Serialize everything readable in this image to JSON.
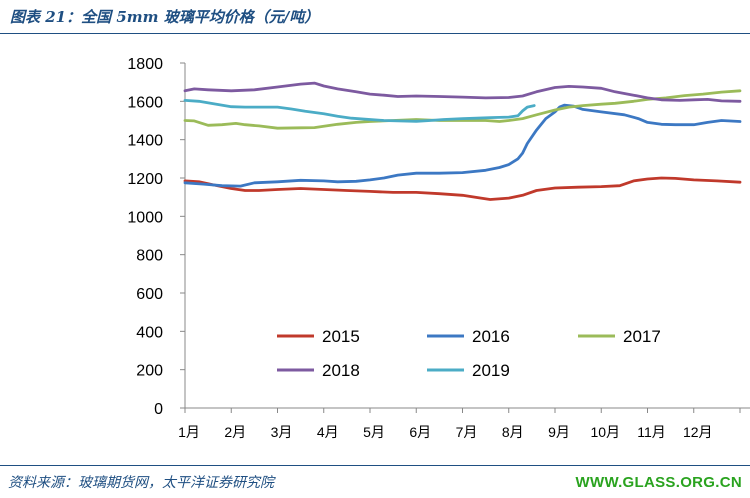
{
  "header": {
    "title": "图表 21：全国 5mm 玻璃平均价格（元/吨）"
  },
  "footer": {
    "source": "资料来源：玻璃期货网，太平洋证券研究院",
    "watermark": "WWW.GLASS.ORG.CN"
  },
  "chart_data": {
    "type": "line",
    "title": "全国 5mm 玻璃平均价格（元/吨）",
    "xlabel": "",
    "ylabel": "",
    "x_ticks": [
      "1月",
      "2月",
      "3月",
      "4月",
      "5月",
      "6月",
      "7月",
      "8月",
      "9月",
      "10月",
      "11月",
      "12月"
    ],
    "x_domain": [
      1,
      13
    ],
    "ylim": [
      0,
      1800
    ],
    "y_ticks": [
      0,
      200,
      400,
      600,
      800,
      1000,
      1200,
      1400,
      1600,
      1800
    ],
    "grid": false,
    "legend_position": "inside-bottom",
    "series": [
      {
        "name": "2015",
        "color": "#c0392b",
        "points": [
          [
            1.0,
            1185
          ],
          [
            1.3,
            1180
          ],
          [
            1.6,
            1165
          ],
          [
            2.0,
            1145
          ],
          [
            2.3,
            1135
          ],
          [
            2.6,
            1135
          ],
          [
            3.0,
            1140
          ],
          [
            3.5,
            1145
          ],
          [
            4.0,
            1140
          ],
          [
            4.5,
            1135
          ],
          [
            5.0,
            1130
          ],
          [
            5.5,
            1125
          ],
          [
            6.0,
            1125
          ],
          [
            6.5,
            1118
          ],
          [
            7.0,
            1110
          ],
          [
            7.4,
            1095
          ],
          [
            7.6,
            1088
          ],
          [
            8.0,
            1095
          ],
          [
            8.3,
            1110
          ],
          [
            8.6,
            1135
          ],
          [
            9.0,
            1148
          ],
          [
            9.5,
            1152
          ],
          [
            10.0,
            1155
          ],
          [
            10.4,
            1160
          ],
          [
            10.7,
            1185
          ],
          [
            11.0,
            1195
          ],
          [
            11.3,
            1200
          ],
          [
            11.6,
            1198
          ],
          [
            12.0,
            1190
          ],
          [
            12.5,
            1185
          ],
          [
            13.0,
            1178
          ]
        ]
      },
      {
        "name": "2016",
        "color": "#3c78c3",
        "points": [
          [
            1.0,
            1175
          ],
          [
            1.4,
            1168
          ],
          [
            1.8,
            1160
          ],
          [
            2.2,
            1158
          ],
          [
            2.5,
            1175
          ],
          [
            3.0,
            1180
          ],
          [
            3.5,
            1188
          ],
          [
            4.0,
            1185
          ],
          [
            4.3,
            1180
          ],
          [
            4.7,
            1183
          ],
          [
            5.0,
            1190
          ],
          [
            5.3,
            1200
          ],
          [
            5.6,
            1215
          ],
          [
            6.0,
            1225
          ],
          [
            6.5,
            1225
          ],
          [
            7.0,
            1228
          ],
          [
            7.5,
            1240
          ],
          [
            7.8,
            1255
          ],
          [
            8.0,
            1270
          ],
          [
            8.2,
            1300
          ],
          [
            8.3,
            1330
          ],
          [
            8.4,
            1380
          ],
          [
            8.6,
            1450
          ],
          [
            8.8,
            1510
          ],
          [
            9.0,
            1545
          ],
          [
            9.1,
            1570
          ],
          [
            9.2,
            1580
          ],
          [
            9.4,
            1575
          ],
          [
            9.6,
            1558
          ],
          [
            10.0,
            1545
          ],
          [
            10.5,
            1530
          ],
          [
            10.8,
            1510
          ],
          [
            11.0,
            1490
          ],
          [
            11.3,
            1480
          ],
          [
            11.6,
            1478
          ],
          [
            12.0,
            1478
          ],
          [
            12.3,
            1490
          ],
          [
            12.6,
            1500
          ],
          [
            13.0,
            1495
          ]
        ]
      },
      {
        "name": "2017",
        "color": "#9bbb59",
        "points": [
          [
            1.0,
            1500
          ],
          [
            1.2,
            1498
          ],
          [
            1.5,
            1475
          ],
          [
            1.8,
            1478
          ],
          [
            2.1,
            1485
          ],
          [
            2.3,
            1478
          ],
          [
            2.6,
            1472
          ],
          [
            3.0,
            1460
          ],
          [
            3.5,
            1462
          ],
          [
            3.8,
            1463
          ],
          [
            4.0,
            1470
          ],
          [
            4.3,
            1480
          ],
          [
            4.7,
            1490
          ],
          [
            5.0,
            1495
          ],
          [
            5.5,
            1500
          ],
          [
            6.0,
            1505
          ],
          [
            6.5,
            1500
          ],
          [
            7.0,
            1500
          ],
          [
            7.5,
            1500
          ],
          [
            7.8,
            1495
          ],
          [
            8.0,
            1500
          ],
          [
            8.3,
            1510
          ],
          [
            8.6,
            1530
          ],
          [
            9.0,
            1555
          ],
          [
            9.3,
            1570
          ],
          [
            9.6,
            1578
          ],
          [
            10.0,
            1585
          ],
          [
            10.3,
            1590
          ],
          [
            10.7,
            1600
          ],
          [
            11.0,
            1610
          ],
          [
            11.4,
            1618
          ],
          [
            11.8,
            1630
          ],
          [
            12.2,
            1638
          ],
          [
            12.6,
            1648
          ],
          [
            13.0,
            1655
          ]
        ]
      },
      {
        "name": "2018",
        "color": "#7d5aa0",
        "points": [
          [
            1.0,
            1655
          ],
          [
            1.2,
            1665
          ],
          [
            1.5,
            1660
          ],
          [
            2.0,
            1655
          ],
          [
            2.5,
            1660
          ],
          [
            3.0,
            1675
          ],
          [
            3.5,
            1690
          ],
          [
            3.8,
            1695
          ],
          [
            4.0,
            1680
          ],
          [
            4.3,
            1665
          ],
          [
            4.7,
            1650
          ],
          [
            5.0,
            1638
          ],
          [
            5.3,
            1632
          ],
          [
            5.6,
            1625
          ],
          [
            6.0,
            1628
          ],
          [
            6.5,
            1625
          ],
          [
            7.0,
            1622
          ],
          [
            7.5,
            1618
          ],
          [
            8.0,
            1620
          ],
          [
            8.3,
            1628
          ],
          [
            8.6,
            1650
          ],
          [
            9.0,
            1672
          ],
          [
            9.3,
            1678
          ],
          [
            9.6,
            1675
          ],
          [
            10.0,
            1668
          ],
          [
            10.3,
            1650
          ],
          [
            10.7,
            1632
          ],
          [
            11.0,
            1618
          ],
          [
            11.3,
            1608
          ],
          [
            11.7,
            1605
          ],
          [
            12.0,
            1608
          ],
          [
            12.3,
            1610
          ],
          [
            12.6,
            1602
          ],
          [
            13.0,
            1600
          ]
        ]
      },
      {
        "name": "2019",
        "color": "#4bacc6",
        "points": [
          [
            1.0,
            1605
          ],
          [
            1.3,
            1600
          ],
          [
            1.6,
            1588
          ],
          [
            2.0,
            1572
          ],
          [
            2.3,
            1570
          ],
          [
            2.6,
            1570
          ],
          [
            3.0,
            1570
          ],
          [
            3.3,
            1560
          ],
          [
            3.6,
            1548
          ],
          [
            4.0,
            1535
          ],
          [
            4.3,
            1522
          ],
          [
            4.6,
            1512
          ],
          [
            5.0,
            1505
          ],
          [
            5.3,
            1500
          ],
          [
            5.6,
            1498
          ],
          [
            6.0,
            1496
          ],
          [
            6.3,
            1500
          ],
          [
            6.6,
            1505
          ],
          [
            7.0,
            1510
          ],
          [
            7.3,
            1512
          ],
          [
            7.6,
            1515
          ],
          [
            8.0,
            1518
          ],
          [
            8.2,
            1525
          ],
          [
            8.3,
            1550
          ],
          [
            8.4,
            1570
          ],
          [
            8.55,
            1578
          ]
        ]
      }
    ]
  }
}
